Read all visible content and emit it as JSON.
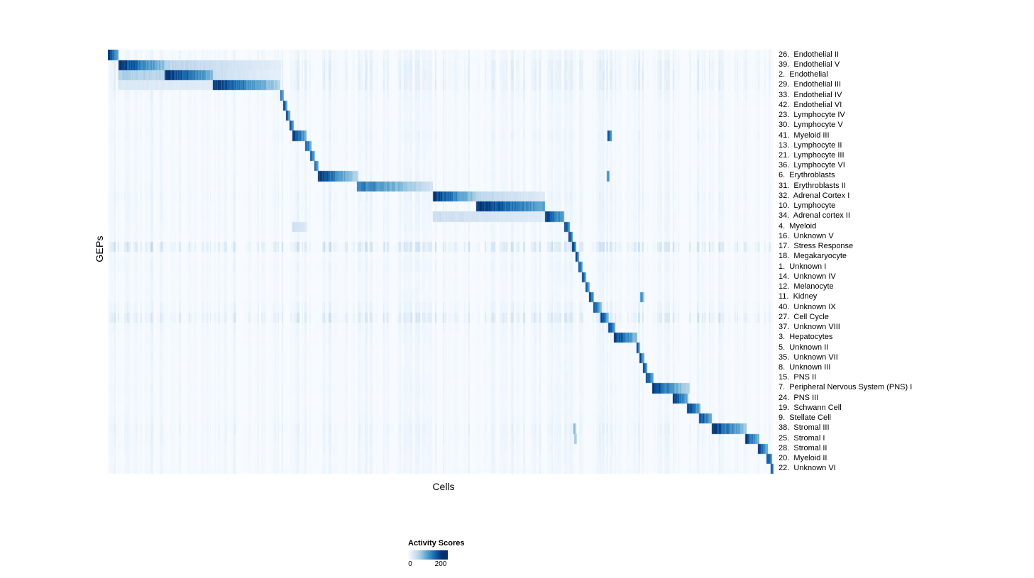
{
  "figure": {
    "xlabel": "Cells",
    "ylabel": "GEPs"
  },
  "legend": {
    "title": "Activity Scores",
    "tick_min": "0",
    "tick_max": "200"
  },
  "chart_data": {
    "type": "heatmap",
    "title": "",
    "xlabel": "Cells",
    "ylabel": "GEPs",
    "legend_title": "Activity Scores",
    "value_range": [
      0,
      200
    ],
    "colormap": "Blues",
    "colormap_anchors": [
      "#f7fbff",
      "#deebf7",
      "#c6dbef",
      "#9ecae1",
      "#6baed6",
      "#4292c6",
      "#2171b5",
      "#08519c",
      "#08306b"
    ],
    "x_axis": "cells sorted by assigned GEP (block-diagonal structure)",
    "rows": [
      {
        "label": "26.  Endothelial II",
        "noise": 0.1,
        "blocks": [
          [
            0.0,
            0.016,
            1.0,
            0.5
          ]
        ]
      },
      {
        "label": "39.  Endothelial V",
        "noise": 0.16,
        "blocks": [
          [
            0.016,
            0.085,
            1.0,
            0.4
          ],
          [
            0.085,
            0.26,
            0.3,
            0.1
          ]
        ]
      },
      {
        "label": "2.  Endothelial",
        "noise": 0.16,
        "blocks": [
          [
            0.016,
            0.085,
            0.33,
            0.28
          ],
          [
            0.085,
            0.158,
            1.0,
            0.45
          ],
          [
            0.158,
            0.26,
            0.22,
            0.08
          ]
        ]
      },
      {
        "label": "29.  Endothelial III",
        "noise": 0.16,
        "blocks": [
          [
            0.016,
            0.158,
            0.14,
            0.12
          ],
          [
            0.158,
            0.259,
            1.0,
            0.3
          ]
        ]
      },
      {
        "label": "33.  Endothelial IV",
        "noise": 0.09,
        "blocks": [
          [
            0.259,
            0.2645,
            0.85,
            0.5
          ]
        ]
      },
      {
        "label": "42.  Endothelial VI",
        "noise": 0.07,
        "blocks": [
          [
            0.2635,
            0.2695,
            0.92,
            0.5
          ]
        ]
      },
      {
        "label": "23.  Lymphocyte IV",
        "noise": 0.07,
        "blocks": [
          [
            0.268,
            0.2745,
            0.9,
            0.5
          ]
        ]
      },
      {
        "label": "30.  Lymphocyte V",
        "noise": 0.07,
        "blocks": [
          [
            0.2725,
            0.279,
            0.9,
            0.5
          ]
        ]
      },
      {
        "label": "41.  Myeloid III",
        "noise": 0.09,
        "blocks": [
          [
            0.277,
            0.298,
            1.0,
            0.45
          ],
          [
            0.75,
            0.757,
            0.85,
            0.6
          ]
        ]
      },
      {
        "label": "13.  Lymphocyte II",
        "noise": 0.07,
        "blocks": [
          [
            0.296,
            0.3055,
            0.9,
            0.45
          ]
        ]
      },
      {
        "label": "21.  Lymphocyte III",
        "noise": 0.07,
        "blocks": [
          [
            0.304,
            0.3115,
            0.9,
            0.45
          ]
        ]
      },
      {
        "label": "36.  Lymphocyte VI",
        "noise": 0.07,
        "blocks": [
          [
            0.31,
            0.317,
            0.85,
            0.45
          ]
        ]
      },
      {
        "label": "6.  Erythroblasts",
        "noise": 0.08,
        "blocks": [
          [
            0.316,
            0.376,
            1.0,
            0.25
          ],
          [
            0.749,
            0.754,
            0.7,
            0.5
          ]
        ]
      },
      {
        "label": "31.  Erythroblasts II",
        "noise": 0.08,
        "blocks": [
          [
            0.374,
            0.488,
            0.75,
            0.18
          ]
        ]
      },
      {
        "label": "32.  Adrenal Cortex I",
        "noise": 0.11,
        "blocks": [
          [
            0.488,
            0.553,
            1.0,
            0.35
          ],
          [
            0.553,
            0.657,
            0.28,
            0.12
          ]
        ]
      },
      {
        "label": "10.  Lymphocyte",
        "noise": 0.09,
        "blocks": [
          [
            0.553,
            0.657,
            1.0,
            0.5
          ]
        ]
      },
      {
        "label": "34.  Adrenal cortex II",
        "noise": 0.09,
        "blocks": [
          [
            0.488,
            0.553,
            0.22,
            0.18
          ],
          [
            0.553,
            0.657,
            0.18,
            0.12
          ],
          [
            0.657,
            0.686,
            1.0,
            0.5
          ]
        ]
      },
      {
        "label": "4.  Myeloid",
        "noise": 0.08,
        "blocks": [
          [
            0.277,
            0.3,
            0.22,
            0.12
          ],
          [
            0.686,
            0.6935,
            1.0,
            0.55
          ]
        ]
      },
      {
        "label": "16.  Unknown V",
        "noise": 0.07,
        "blocks": [
          [
            0.692,
            0.698,
            0.95,
            0.55
          ]
        ]
      },
      {
        "label": "17.  Stress Response",
        "noise": 0.3,
        "blocks": [
          [
            0.697,
            0.7035,
            1.0,
            0.55
          ]
        ]
      },
      {
        "label": "18.  Megakaryocyte",
        "noise": 0.07,
        "blocks": [
          [
            0.7025,
            0.708,
            0.95,
            0.55
          ]
        ]
      },
      {
        "label": "1.  Unknown I",
        "noise": 0.09,
        "blocks": [
          [
            0.707,
            0.7135,
            0.9,
            0.5
          ]
        ]
      },
      {
        "label": "14.  Unknown IV",
        "noise": 0.07,
        "blocks": [
          [
            0.7125,
            0.7185,
            0.9,
            0.5
          ]
        ]
      },
      {
        "label": "12.  Melanocyte",
        "noise": 0.07,
        "blocks": [
          [
            0.7175,
            0.7235,
            0.9,
            0.5
          ]
        ]
      },
      {
        "label": "11.  Kidney",
        "noise": 0.07,
        "blocks": [
          [
            0.7225,
            0.7305,
            0.95,
            0.5
          ],
          [
            0.8,
            0.8055,
            0.65,
            0.4
          ]
        ]
      },
      {
        "label": "40.  Unknown IX",
        "noise": 0.12,
        "blocks": [
          [
            0.7295,
            0.7415,
            0.9,
            0.45
          ]
        ]
      },
      {
        "label": "27.  Cell Cycle",
        "noise": 0.25,
        "blocks": [
          [
            0.74,
            0.7525,
            0.95,
            0.45
          ]
        ]
      },
      {
        "label": "37.  Unknown VIII",
        "noise": 0.09,
        "blocks": [
          [
            0.7515,
            0.762,
            0.95,
            0.5
          ]
        ]
      },
      {
        "label": "3.  Hepatocytes",
        "noise": 0.08,
        "blocks": [
          [
            0.76,
            0.795,
            1.0,
            0.4
          ]
        ]
      },
      {
        "label": "5.  Unknown II",
        "noise": 0.07,
        "blocks": [
          [
            0.794,
            0.8,
            0.9,
            0.5
          ]
        ]
      },
      {
        "label": "35.  Unknown VII",
        "noise": 0.07,
        "blocks": [
          [
            0.799,
            0.8055,
            0.9,
            0.5
          ]
        ]
      },
      {
        "label": "8.  Unknown III",
        "noise": 0.07,
        "blocks": [
          [
            0.8035,
            0.81,
            0.9,
            0.5
          ]
        ]
      },
      {
        "label": "15.  PNS II",
        "noise": 0.07,
        "blocks": [
          [
            0.808,
            0.82,
            0.95,
            0.5
          ]
        ]
      },
      {
        "label": "7.  Peripheral Nervous System (PNS) I",
        "noise": 0.08,
        "blocks": [
          [
            0.818,
            0.851,
            1.0,
            0.55
          ],
          [
            0.851,
            0.874,
            0.5,
            0.3
          ]
        ]
      },
      {
        "label": "24.  PNS III",
        "noise": 0.07,
        "blocks": [
          [
            0.849,
            0.872,
            0.95,
            0.45
          ]
        ]
      },
      {
        "label": "19.  Schwann Cell",
        "noise": 0.07,
        "blocks": [
          [
            0.87,
            0.89,
            0.95,
            0.5
          ]
        ]
      },
      {
        "label": "9.  Stellate Cell",
        "noise": 0.08,
        "blocks": [
          [
            0.888,
            0.907,
            0.95,
            0.5
          ]
        ]
      },
      {
        "label": "38.  Stromal III",
        "noise": 0.12,
        "blocks": [
          [
            0.699,
            0.704,
            0.45,
            0.3
          ],
          [
            0.907,
            0.959,
            1.0,
            0.35
          ]
        ]
      },
      {
        "label": "25.  Stromal I",
        "noise": 0.1,
        "blocks": [
          [
            0.7,
            0.705,
            0.35,
            0.25
          ],
          [
            0.957,
            0.979,
            0.95,
            0.45
          ]
        ]
      },
      {
        "label": "28.  Stromal II",
        "noise": 0.09,
        "blocks": [
          [
            0.977,
            0.991,
            0.95,
            0.5
          ]
        ]
      },
      {
        "label": "20.  Myeloid II",
        "noise": 0.08,
        "blocks": [
          [
            0.989,
            0.9975,
            0.95,
            0.55
          ]
        ]
      },
      {
        "label": "22.  Unknown VI",
        "noise": 0.08,
        "blocks": [
          [
            0.9955,
            1.0,
            0.95,
            0.6
          ]
        ]
      }
    ]
  }
}
